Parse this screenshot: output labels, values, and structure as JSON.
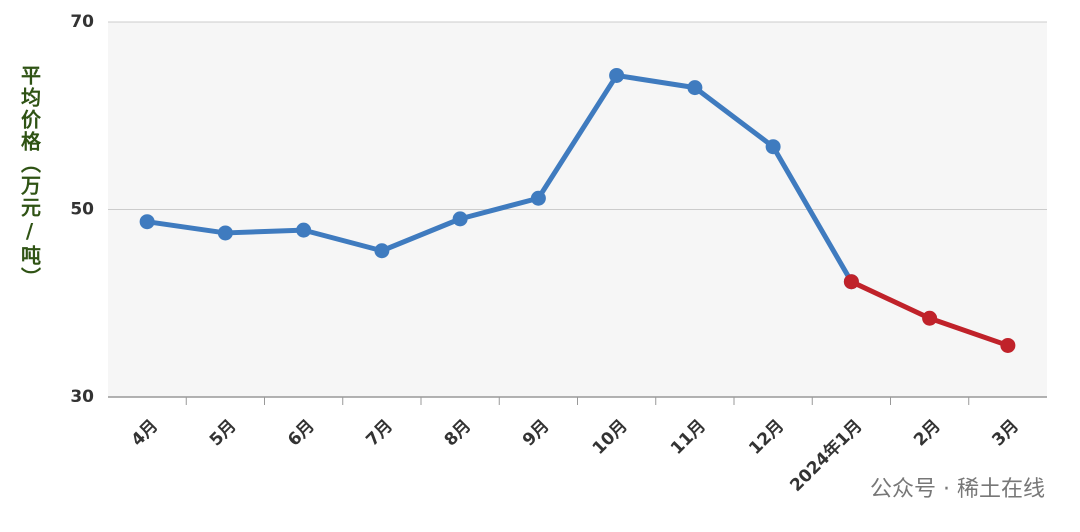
{
  "chart_data": {
    "type": "line",
    "y_label": "平均价格（万元/吨）",
    "categories": [
      "4月",
      "5月",
      "6月",
      "7月",
      "8月",
      "9月",
      "10月",
      "11月",
      "12月",
      "2024年1月",
      "2月",
      "3月"
    ],
    "series": [
      {
        "color": "#3f7bbf",
        "values": [
          48.7,
          47.5,
          47.8,
          45.6,
          49.0,
          51.2,
          64.3,
          63.0,
          56.7,
          42.3,
          null,
          null
        ]
      },
      {
        "color": "#c0222a",
        "values": [
          null,
          null,
          null,
          null,
          null,
          null,
          null,
          null,
          null,
          42.3,
          38.4,
          35.5
        ]
      }
    ],
    "ylim": [
      30,
      70
    ],
    "yticks": [
      30,
      50,
      70
    ],
    "grid": true,
    "watermark": "公众号 · 稀土在线"
  }
}
